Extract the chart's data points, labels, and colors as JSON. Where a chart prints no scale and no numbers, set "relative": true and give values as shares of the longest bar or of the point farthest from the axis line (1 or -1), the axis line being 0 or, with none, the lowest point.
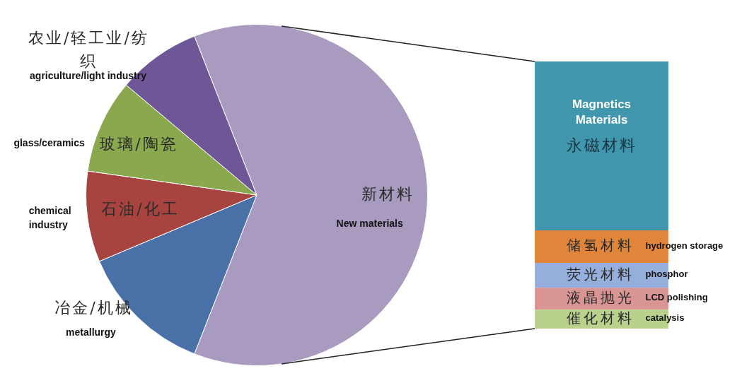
{
  "chart_data": [
    {
      "type": "pie",
      "categories": [
        "新材料\nNew materials",
        "冶金/机械\nmetallurgy",
        "石油/化工\nchemical industry",
        "玻璃/陶瓷\nglass/ceramics",
        "农业/轻工业/纺织\nagriculture/light industry"
      ],
      "values": [
        61.9,
        12.7,
        8.6,
        8.9,
        7.9
      ],
      "colors": [
        "#a89bbf",
        "#4a70a8",
        "#a8443f",
        "#8aa84e",
        "#6f5797"
      ]
    },
    {
      "type": "bar",
      "stacked": true,
      "relative": true,
      "categories": [
        null
      ],
      "series": [
        {
          "name": "催化材料\ncatalysis",
          "color": "#b9d18d",
          "values": [
            0.071
          ]
        },
        {
          "name": "液晶抛光\nLCD polishing",
          "color": "#d89594",
          "values": [
            0.082
          ]
        },
        {
          "name": "荧光材料\nphosphor",
          "color": "#95aedb",
          "values": [
            0.093
          ]
        },
        {
          "name": "储氢材料\nhydrogen storage",
          "color": "#e0853a",
          "values": [
            0.122
          ]
        },
        {
          "name": "Magnetics Materials\n永磁材料",
          "color": "#3f96ad",
          "values": [
            0.632
          ]
        }
      ]
    }
  ]
}
